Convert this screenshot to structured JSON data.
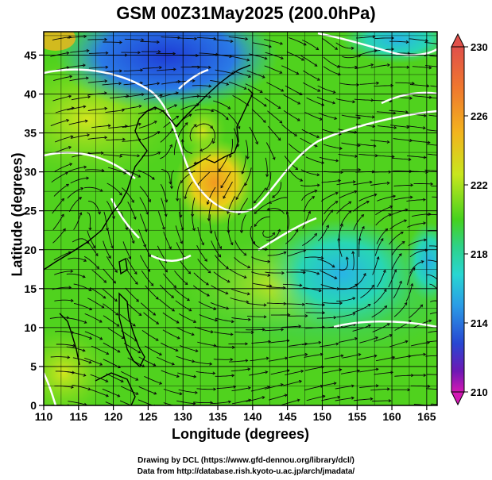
{
  "title": "GSM 00Z31May2025 (200.0hPa)",
  "x_axis": {
    "label": "Longitude (degrees)",
    "ticks": [
      "110",
      "115",
      "120",
      "125",
      "130",
      "135",
      "140",
      "145",
      "150",
      "155",
      "160",
      "165"
    ]
  },
  "y_axis": {
    "label": "Latitude (degrees)",
    "ticks": [
      "0",
      "5",
      "10",
      "15",
      "20",
      "25",
      "30",
      "35",
      "40",
      "45"
    ]
  },
  "colorbar": {
    "labels": [
      "230",
      "226",
      "222",
      "218",
      "214",
      "210"
    ],
    "colors": [
      "#d23c6e",
      "#e0504a",
      "#f28a28",
      "#f2c41e",
      "#c8e61e",
      "#5ad21e",
      "#2ed27a",
      "#28d6d2",
      "#2a9ce6",
      "#2846d2",
      "#5018b4",
      "#c818b4"
    ]
  },
  "credits": {
    "line1": "Drawing by DCL (https://www.gfd-dennou.org/library/dcl/)",
    "line2": "Data from http://database.rish.kyoto-u.ac.jp/arch/jmadata/"
  }
}
